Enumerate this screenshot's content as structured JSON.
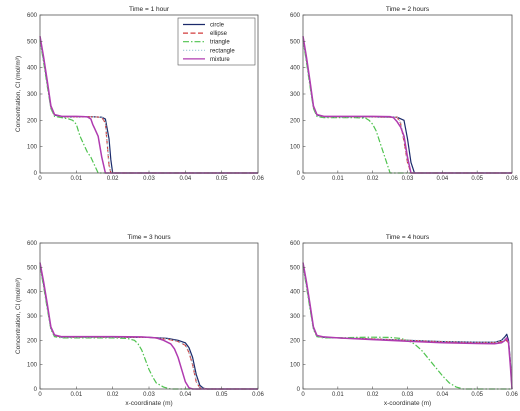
{
  "figure": {
    "background": "#ffffff"
  },
  "chart_data": [
    {
      "type": "line",
      "title": "Time = 1 hour",
      "xlabel": "",
      "ylabel": "Concentration, Cl (mol/m³)",
      "xlim": [
        0,
        0.06
      ],
      "ylim": [
        0,
        600
      ],
      "xticks": [
        "0",
        "0.01",
        "0.02",
        "0.03",
        "0.04",
        "0.05",
        "0.06"
      ],
      "yticks": [
        "0",
        "100",
        "200",
        "300",
        "400",
        "500",
        "600"
      ],
      "grid": false,
      "legend": "top-right",
      "series": [
        {
          "name": "circle",
          "color": "#1b2a6b",
          "dash": "solid",
          "x": [
            0,
            0.001,
            0.002,
            0.003,
            0.004,
            0.006,
            0.01,
            0.015,
            0.017,
            0.018,
            0.019,
            0.0195,
            0.02,
            0.025,
            0.06
          ],
          "y": [
            510,
            430,
            340,
            250,
            220,
            213,
            213,
            213,
            212,
            205,
            130,
            50,
            0,
            0,
            0
          ]
        },
        {
          "name": "ellipse",
          "color": "#d23b3b",
          "dash": "dashed",
          "x": [
            0,
            0.001,
            0.002,
            0.003,
            0.004,
            0.006,
            0.01,
            0.015,
            0.017,
            0.018,
            0.0185,
            0.019,
            0.0195,
            0.025,
            0.06
          ],
          "y": [
            515,
            435,
            345,
            250,
            220,
            213,
            213,
            213,
            212,
            190,
            110,
            30,
            0,
            0,
            0
          ]
        },
        {
          "name": "triangle",
          "color": "#4fc34f",
          "dash": "dashdot",
          "x": [
            0,
            0.001,
            0.002,
            0.003,
            0.004,
            0.006,
            0.008,
            0.009,
            0.01,
            0.011,
            0.012,
            0.013,
            0.014,
            0.015,
            0.016,
            0.02,
            0.06
          ],
          "y": [
            505,
            420,
            330,
            245,
            215,
            210,
            205,
            200,
            185,
            140,
            110,
            80,
            60,
            30,
            0,
            0,
            0
          ]
        },
        {
          "name": "rectangle",
          "color": "#9ec7d6",
          "dash": "dotted",
          "x": [
            0,
            0.001,
            0.002,
            0.003,
            0.004,
            0.006,
            0.01,
            0.015,
            0.017,
            0.018,
            0.0185,
            0.019,
            0.0195,
            0.025,
            0.06
          ],
          "y": [
            512,
            432,
            342,
            250,
            220,
            213,
            213,
            213,
            212,
            195,
            120,
            40,
            0,
            0,
            0
          ]
        },
        {
          "name": "mixture",
          "color": "#b03bb0",
          "dash": "solid",
          "x": [
            0,
            0.001,
            0.002,
            0.003,
            0.004,
            0.006,
            0.01,
            0.012,
            0.013,
            0.014,
            0.0145,
            0.015,
            0.016,
            0.017,
            0.018,
            0.025,
            0.06
          ],
          "y": [
            520,
            440,
            350,
            255,
            222,
            215,
            215,
            214,
            213,
            205,
            185,
            170,
            140,
            60,
            0,
            0,
            0
          ]
        }
      ]
    },
    {
      "type": "line",
      "title": "Time = 2 hours",
      "xlabel": "",
      "ylabel": "",
      "xlim": [
        0,
        0.06
      ],
      "ylim": [
        0,
        600
      ],
      "xticks": [
        "0",
        "0.01",
        "0.02",
        "0.03",
        "0.04",
        "0.05",
        "0.06"
      ],
      "yticks": [
        "0",
        "100",
        "200",
        "300",
        "400",
        "500",
        "600"
      ],
      "grid": false,
      "legend": "none",
      "series": [
        {
          "name": "circle",
          "color": "#1b2a6b",
          "dash": "solid",
          "x": [
            0,
            0.001,
            0.002,
            0.003,
            0.004,
            0.006,
            0.01,
            0.02,
            0.027,
            0.029,
            0.03,
            0.031,
            0.032,
            0.034,
            0.06
          ],
          "y": [
            510,
            430,
            340,
            250,
            220,
            213,
            213,
            213,
            212,
            200,
            130,
            40,
            0,
            0,
            0
          ]
        },
        {
          "name": "ellipse",
          "color": "#d23b3b",
          "dash": "dashed",
          "x": [
            0,
            0.001,
            0.002,
            0.003,
            0.004,
            0.006,
            0.01,
            0.02,
            0.027,
            0.028,
            0.029,
            0.03,
            0.031,
            0.034,
            0.06
          ],
          "y": [
            515,
            435,
            345,
            250,
            220,
            213,
            213,
            213,
            212,
            190,
            120,
            40,
            0,
            0,
            0
          ]
        },
        {
          "name": "triangle",
          "color": "#4fc34f",
          "dash": "dashdot",
          "x": [
            0,
            0.001,
            0.002,
            0.003,
            0.004,
            0.006,
            0.01,
            0.015,
            0.018,
            0.019,
            0.02,
            0.021,
            0.022,
            0.023,
            0.024,
            0.025,
            0.03,
            0.06
          ],
          "y": [
            505,
            420,
            330,
            245,
            215,
            210,
            210,
            210,
            208,
            200,
            185,
            160,
            120,
            80,
            40,
            0,
            0,
            0
          ]
        },
        {
          "name": "rectangle",
          "color": "#9ec7d6",
          "dash": "dotted",
          "x": [
            0,
            0.001,
            0.002,
            0.003,
            0.004,
            0.006,
            0.01,
            0.02,
            0.027,
            0.028,
            0.029,
            0.03,
            0.031,
            0.034,
            0.06
          ],
          "y": [
            512,
            432,
            342,
            250,
            220,
            213,
            213,
            213,
            212,
            195,
            125,
            45,
            0,
            0,
            0
          ]
        },
        {
          "name": "mixture",
          "color": "#b03bb0",
          "dash": "solid",
          "x": [
            0,
            0.001,
            0.002,
            0.003,
            0.004,
            0.006,
            0.01,
            0.02,
            0.025,
            0.026,
            0.027,
            0.028,
            0.029,
            0.03,
            0.031,
            0.034,
            0.06
          ],
          "y": [
            520,
            440,
            350,
            255,
            222,
            215,
            215,
            215,
            214,
            210,
            195,
            175,
            140,
            60,
            0,
            0,
            0
          ]
        }
      ]
    },
    {
      "type": "line",
      "title": "Time = 3 hours",
      "xlabel": "x-coordinate (m)",
      "ylabel": "Concentration, Cl (mol/m³)",
      "xlim": [
        0,
        0.06
      ],
      "ylim": [
        0,
        600
      ],
      "xticks": [
        "0",
        "0.01",
        "0.02",
        "0.03",
        "0.04",
        "0.05",
        "0.06"
      ],
      "yticks": [
        "0",
        "100",
        "200",
        "300",
        "400",
        "500",
        "600"
      ],
      "grid": false,
      "legend": "none",
      "series": [
        {
          "name": "circle",
          "color": "#1b2a6b",
          "dash": "solid",
          "x": [
            0,
            0.001,
            0.002,
            0.003,
            0.004,
            0.006,
            0.01,
            0.02,
            0.03,
            0.035,
            0.038,
            0.04,
            0.041,
            0.042,
            0.043,
            0.044,
            0.045,
            0.046,
            0.06
          ],
          "y": [
            510,
            430,
            340,
            250,
            220,
            213,
            213,
            213,
            212,
            208,
            200,
            190,
            170,
            130,
            60,
            15,
            3,
            0,
            0
          ]
        },
        {
          "name": "ellipse",
          "color": "#d23b3b",
          "dash": "dashed",
          "x": [
            0,
            0.001,
            0.002,
            0.003,
            0.004,
            0.006,
            0.01,
            0.02,
            0.03,
            0.035,
            0.038,
            0.04,
            0.041,
            0.042,
            0.043,
            0.044,
            0.046,
            0.06
          ],
          "y": [
            515,
            435,
            345,
            250,
            220,
            213,
            213,
            213,
            212,
            205,
            195,
            180,
            150,
            100,
            30,
            5,
            0,
            0
          ]
        },
        {
          "name": "triangle",
          "color": "#4fc34f",
          "dash": "dashdot",
          "x": [
            0,
            0.001,
            0.002,
            0.003,
            0.004,
            0.006,
            0.01,
            0.02,
            0.024,
            0.026,
            0.027,
            0.028,
            0.029,
            0.03,
            0.031,
            0.032,
            0.034,
            0.036,
            0.04,
            0.06
          ],
          "y": [
            505,
            420,
            330,
            245,
            215,
            210,
            210,
            210,
            208,
            200,
            185,
            160,
            120,
            80,
            50,
            25,
            8,
            0,
            0,
            0
          ]
        },
        {
          "name": "rectangle",
          "color": "#9ec7d6",
          "dash": "dotted",
          "x": [
            0,
            0.001,
            0.002,
            0.003,
            0.004,
            0.006,
            0.01,
            0.02,
            0.03,
            0.035,
            0.038,
            0.04,
            0.041,
            0.042,
            0.043,
            0.044,
            0.046,
            0.06
          ],
          "y": [
            512,
            432,
            342,
            250,
            220,
            213,
            213,
            213,
            212,
            206,
            196,
            182,
            155,
            105,
            35,
            5,
            0,
            0
          ]
        },
        {
          "name": "mixture",
          "color": "#b03bb0",
          "dash": "solid",
          "x": [
            0,
            0.001,
            0.002,
            0.003,
            0.004,
            0.006,
            0.01,
            0.02,
            0.028,
            0.032,
            0.034,
            0.036,
            0.037,
            0.038,
            0.039,
            0.04,
            0.041,
            0.042,
            0.06
          ],
          "y": [
            520,
            440,
            350,
            255,
            222,
            215,
            215,
            215,
            214,
            210,
            200,
            185,
            165,
            130,
            80,
            30,
            5,
            0,
            0
          ]
        }
      ]
    },
    {
      "type": "line",
      "title": "Time = 4 hours",
      "xlabel": "x-coordinate (m)",
      "ylabel": "",
      "xlim": [
        0,
        0.06
      ],
      "ylim": [
        0,
        600
      ],
      "xticks": [
        "0",
        "0.01",
        "0.02",
        "0.03",
        "0.04",
        "0.05",
        "0.06"
      ],
      "yticks": [
        "0",
        "100",
        "200",
        "300",
        "400",
        "500",
        "600"
      ],
      "grid": false,
      "legend": "none",
      "series": [
        {
          "name": "circle",
          "color": "#1b2a6b",
          "dash": "solid",
          "x": [
            0,
            0.001,
            0.002,
            0.003,
            0.004,
            0.006,
            0.01,
            0.02,
            0.03,
            0.04,
            0.05,
            0.055,
            0.057,
            0.058,
            0.0585,
            0.059,
            0.0595,
            0.06
          ],
          "y": [
            510,
            430,
            340,
            250,
            218,
            212,
            210,
            205,
            200,
            195,
            192,
            192,
            200,
            215,
            225,
            200,
            120,
            0
          ]
        },
        {
          "name": "ellipse",
          "color": "#d23b3b",
          "dash": "dashed",
          "x": [
            0,
            0.001,
            0.002,
            0.003,
            0.004,
            0.006,
            0.01,
            0.02,
            0.03,
            0.04,
            0.05,
            0.055,
            0.057,
            0.058,
            0.059,
            0.0595,
            0.06
          ],
          "y": [
            515,
            435,
            345,
            250,
            218,
            212,
            210,
            206,
            200,
            194,
            190,
            190,
            195,
            205,
            190,
            110,
            0
          ]
        },
        {
          "name": "triangle",
          "color": "#4fc34f",
          "dash": "dashdot",
          "x": [
            0,
            0.001,
            0.002,
            0.003,
            0.004,
            0.006,
            0.01,
            0.015,
            0.02,
            0.025,
            0.028,
            0.03,
            0.032,
            0.034,
            0.036,
            0.038,
            0.04,
            0.042,
            0.044,
            0.046,
            0.048,
            0.06
          ],
          "y": [
            505,
            420,
            330,
            245,
            215,
            210,
            210,
            212,
            213,
            212,
            208,
            200,
            185,
            160,
            125,
            90,
            55,
            25,
            8,
            0,
            0,
            0
          ]
        },
        {
          "name": "rectangle",
          "color": "#9ec7d6",
          "dash": "dotted",
          "x": [
            0,
            0.001,
            0.002,
            0.003,
            0.004,
            0.006,
            0.01,
            0.02,
            0.03,
            0.04,
            0.05,
            0.055,
            0.057,
            0.058,
            0.059,
            0.0595,
            0.06
          ],
          "y": [
            512,
            432,
            342,
            250,
            218,
            212,
            210,
            206,
            201,
            196,
            192,
            192,
            198,
            210,
            195,
            115,
            0
          ]
        },
        {
          "name": "mixture",
          "color": "#b03bb0",
          "dash": "solid",
          "x": [
            0,
            0.001,
            0.002,
            0.003,
            0.004,
            0.006,
            0.01,
            0.02,
            0.03,
            0.04,
            0.05,
            0.055,
            0.057,
            0.058,
            0.0585,
            0.059,
            0.0595,
            0.06
          ],
          "y": [
            520,
            440,
            350,
            255,
            220,
            214,
            210,
            203,
            196,
            190,
            187,
            186,
            190,
            200,
            210,
            190,
            100,
            0
          ]
        }
      ]
    }
  ]
}
